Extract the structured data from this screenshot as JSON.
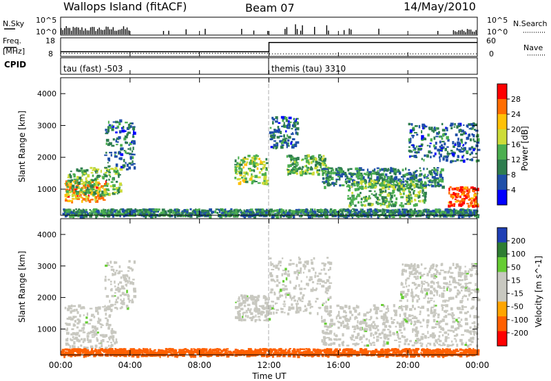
{
  "header": {
    "station": "Wallops Island (fitACF)",
    "beam": "Beam 07",
    "date": "14/May/2010"
  },
  "nsky_panel": {
    "left_label": "N.Sky",
    "right_label": "N.Search",
    "left_ticks": [
      "10^5",
      "10^0"
    ],
    "right_ticks": [
      "10^5",
      "10^0"
    ]
  },
  "freq_panel": {
    "left_label_1": "Freq.",
    "left_label_2": "[MHz]",
    "right_label": "Nave",
    "left_ticks": [
      "18",
      "8"
    ],
    "right_ticks": [
      "60",
      "0"
    ]
  },
  "cpid_panel": {
    "label": "CPID",
    "mode_1": "tau (fast) -503",
    "mode_2": "themis (tau) 3310"
  },
  "power_panel": {
    "ylabel": "Slant Range [km]",
    "yticks": [
      "4000",
      "3000",
      "2000",
      "1000"
    ],
    "colorbar_label": "Power [dB]",
    "colorbar_ticks": [
      "28",
      "24",
      "20",
      "16",
      "12",
      "8",
      "4"
    ]
  },
  "velocity_panel": {
    "ylabel": "Slant Range [km]",
    "yticks": [
      "4000",
      "3000",
      "2000",
      "1000"
    ],
    "colorbar_label": "Velocity [m s^-1]",
    "colorbar_ticks": [
      "200",
      "100",
      "50",
      "15",
      "-15",
      "-50",
      "-100",
      "-200"
    ]
  },
  "xaxis": {
    "label": "Time UT",
    "ticks": [
      "00:00",
      "04:00",
      "08:00",
      "12:00",
      "16:00",
      "20:00",
      "00:00"
    ]
  },
  "colors": {
    "power_scale": [
      "#0000ff",
      "#1f4fa8",
      "#2e7d4f",
      "#4caf50",
      "#cddc39",
      "#ffc107",
      "#ff6d00",
      "#ff0000"
    ],
    "velocity_scale": [
      "#ff0000",
      "#ff6000",
      "#ffa500",
      "#c8c8c0",
      "#c8c8c0",
      "#66cc33",
      "#2e7d32",
      "#1f3fb5"
    ],
    "ground_scatter": "#c8c8c0"
  },
  "chart_data": [
    {
      "type": "line",
      "name": "nsky_panel",
      "x_unit": "hours UT",
      "xlim": [
        0,
        24
      ],
      "description_in_image": "sky noise and search noise time series",
      "legend": [
        "N.Sky",
        "N.Search"
      ],
      "y_scale": "log",
      "ylim": [
        1,
        100000
      ]
    },
    {
      "type": "line",
      "name": "freq_panel",
      "xlim": [
        0,
        24
      ],
      "legend": [
        "Freq. [MHz]",
        "Nave"
      ],
      "series": [
        {
          "name": "Freq. [MHz]",
          "x": [
            0,
            12,
            12,
            24
          ],
          "values": [
            10.5,
            10.5,
            15.5,
            15.5
          ]
        },
        {
          "name": "Nave",
          "x": [
            0,
            12,
            12,
            24
          ],
          "values": [
            10,
            10,
            8,
            8
          ]
        }
      ],
      "ylim_left": [
        8,
        18
      ],
      "ylim_right": [
        0,
        60
      ]
    },
    {
      "type": "table",
      "name": "cpid_panel",
      "rows": [
        {
          "start_hour": 0,
          "mode": "tau (fast) -503"
        },
        {
          "start_hour": 12,
          "mode": "themis (tau) 3310"
        }
      ]
    },
    {
      "type": "heatmap",
      "name": "power",
      "xlabel": "Time UT",
      "ylabel": "Slant Range [km]",
      "xlim": [
        0,
        24
      ],
      "ylim": [
        180,
        4500
      ],
      "zlabel": "Power [dB]",
      "zlim": [
        0,
        32
      ],
      "regions": [
        {
          "t": [
            0.2,
            2.6
          ],
          "range": [
            650,
            1300
          ],
          "power": 24
        },
        {
          "t": [
            0.3,
            3.4
          ],
          "range": [
            850,
            1700
          ],
          "power": 14
        },
        {
          "t": [
            2.5,
            4.2
          ],
          "range": [
            1600,
            3200
          ],
          "power": 8
        },
        {
          "t": [
            10.0,
            11.9
          ],
          "range": [
            1200,
            2100
          ],
          "power": 16
        },
        {
          "t": [
            12.0,
            13.6
          ],
          "range": [
            2300,
            3300
          ],
          "power": 8
        },
        {
          "t": [
            13.0,
            15.3
          ],
          "range": [
            1500,
            2100
          ],
          "power": 14
        },
        {
          "t": [
            15.0,
            22.0
          ],
          "range": [
            1100,
            1700
          ],
          "power": 10
        },
        {
          "t": [
            16.5,
            21.0
          ],
          "range": [
            500,
            1300
          ],
          "power": 14
        },
        {
          "t": [
            20.0,
            24.0
          ],
          "range": [
            1900,
            3100
          ],
          "power": 8
        },
        {
          "t": [
            22.3,
            24.0
          ],
          "range": [
            500,
            1100
          ],
          "power": 28
        },
        {
          "t": [
            0,
            24
          ],
          "range": [
            180,
            400
          ],
          "power": 10
        }
      ]
    },
    {
      "type": "heatmap",
      "name": "velocity",
      "xlabel": "Time UT",
      "ylabel": "Slant Range [km]",
      "xlim": [
        0,
        24
      ],
      "ylim": [
        180,
        4500
      ],
      "zlabel": "Velocity [m s^-1]",
      "zlim": [
        -250,
        250
      ],
      "regions": [
        {
          "t": [
            0.2,
            3.2
          ],
          "range": [
            400,
            1800
          ],
          "velocity": 0,
          "ground_scatter": true
        },
        {
          "t": [
            2.5,
            4.2
          ],
          "range": [
            1600,
            3200
          ],
          "velocity": 0,
          "ground_scatter": true
        },
        {
          "t": [
            10.0,
            12.0
          ],
          "range": [
            1300,
            2100
          ],
          "velocity": 0,
          "ground_scatter": true
        },
        {
          "t": [
            12.0,
            15.5
          ],
          "range": [
            1500,
            3300
          ],
          "velocity": 0,
          "ground_scatter": true
        },
        {
          "t": [
            15.0,
            24.0
          ],
          "range": [
            500,
            1800
          ],
          "velocity": 0,
          "ground_scatter": true
        },
        {
          "t": [
            19.5,
            24.0
          ],
          "range": [
            1900,
            3100
          ],
          "velocity": 0,
          "ground_scatter": true
        },
        {
          "t": [
            0,
            24
          ],
          "range": [
            180,
            400
          ],
          "velocity": -150
        }
      ]
    }
  ]
}
